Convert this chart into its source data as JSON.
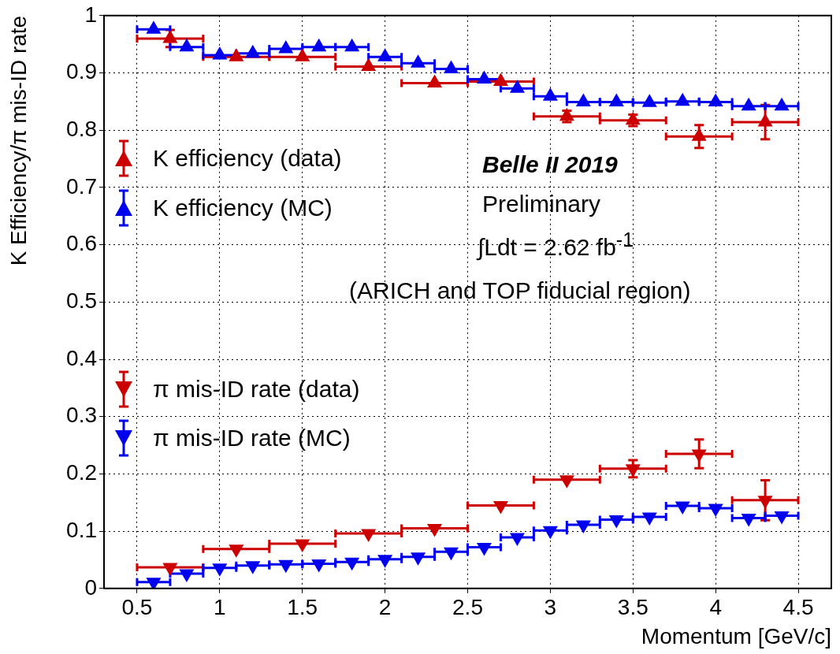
{
  "chart_data": {
    "type": "scatter",
    "xlabel": "Momentum [GeV/c]",
    "ylabel": "K Efficiency/π mis-ID rate",
    "xlim": [
      0.3,
      4.7
    ],
    "xticks": [
      0.5,
      1,
      1.5,
      2,
      2.5,
      3,
      3.5,
      4,
      4.5
    ],
    "ylim": [
      0,
      1
    ],
    "yticks": [
      0,
      0.1,
      0.2,
      0.3,
      0.4,
      0.5,
      0.6,
      0.7,
      0.8,
      0.9,
      1
    ],
    "grid": true,
    "legend": "left",
    "annotations": [
      "Belle II 2019",
      "Preliminary",
      "∫Ldt = 2.62 fb$^{-1}$",
      "(ARICH and TOP fiducial region)"
    ],
    "series": [
      {
        "name": "K efficiency (data)",
        "color": "#cc0000",
        "marker": "triangle",
        "x": [
          0.7,
          1.1,
          1.5,
          1.9,
          2.3,
          2.7,
          3.1,
          3.5,
          3.9,
          4.3
        ],
        "values": [
          0.96,
          0.928,
          0.928,
          0.911,
          0.882,
          0.885,
          0.824,
          0.817,
          0.789,
          0.814
        ],
        "xerrors": [
          0.2,
          0.2,
          0.2,
          0.2,
          0.2,
          0.2,
          0.2,
          0.2,
          0.2,
          0.2
        ],
        "errors": [
          0.015,
          null,
          null,
          null,
          null,
          null,
          0.01,
          0.01,
          0.02,
          0.03
        ]
      },
      {
        "name": "K efficiency (MC)",
        "color": "#0000ee",
        "marker": "triangle",
        "x": [
          0.6,
          0.8,
          1.0,
          1.2,
          1.4,
          1.6,
          1.8,
          2.0,
          2.2,
          2.4,
          2.6,
          2.8,
          3.0,
          3.2,
          3.4,
          3.6,
          3.8,
          4.0,
          4.2,
          4.4
        ],
        "values": [
          0.976,
          0.945,
          0.931,
          0.934,
          0.942,
          0.945,
          0.945,
          0.928,
          0.917,
          0.907,
          0.889,
          0.873,
          0.859,
          0.849,
          0.849,
          0.848,
          0.85,
          0.849,
          0.842,
          0.842
        ],
        "xerrors": [
          0.1,
          0.1,
          0.1,
          0.1,
          0.1,
          0.1,
          0.1,
          0.1,
          0.1,
          0.1,
          0.1,
          0.1,
          0.1,
          0.1,
          0.1,
          0.1,
          0.1,
          0.1,
          0.1,
          0.1
        ]
      },
      {
        "name": "π mis-ID rate (data)",
        "color": "#cc0000",
        "marker": "triangle-down",
        "x": [
          0.7,
          1.1,
          1.5,
          1.9,
          2.3,
          2.7,
          3.1,
          3.5,
          3.9,
          4.3
        ],
        "values": [
          0.037,
          0.069,
          0.078,
          0.096,
          0.105,
          0.145,
          0.19,
          0.209,
          0.235,
          0.154
        ],
        "xerrors": [
          0.2,
          0.2,
          0.2,
          0.2,
          0.2,
          0.2,
          0.2,
          0.2,
          0.2,
          0.2
        ],
        "errors": [
          null,
          null,
          null,
          null,
          null,
          null,
          null,
          0.015,
          0.025,
          0.035
        ]
      },
      {
        "name": "π mis-ID rate (MC)",
        "color": "#0000ee",
        "marker": "triangle-down",
        "x": [
          0.6,
          0.8,
          1.0,
          1.2,
          1.4,
          1.6,
          1.8,
          2.0,
          2.2,
          2.4,
          2.6,
          2.8,
          3.0,
          3.2,
          3.4,
          3.6,
          3.8,
          4.0,
          4.2,
          4.4
        ],
        "values": [
          0.011,
          0.026,
          0.036,
          0.04,
          0.042,
          0.043,
          0.046,
          0.051,
          0.055,
          0.064,
          0.072,
          0.089,
          0.101,
          0.111,
          0.12,
          0.125,
          0.144,
          0.14,
          0.123,
          0.127
        ],
        "xerrors": [
          0.1,
          0.1,
          0.1,
          0.1,
          0.1,
          0.1,
          0.1,
          0.1,
          0.1,
          0.1,
          0.1,
          0.1,
          0.1,
          0.1,
          0.1,
          0.1,
          0.1,
          0.1,
          0.1,
          0.1
        ]
      }
    ]
  }
}
